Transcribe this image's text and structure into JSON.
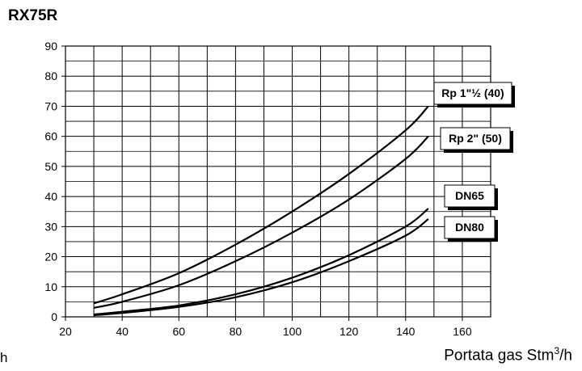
{
  "chart_data": {
    "type": "line",
    "title": "RX75R",
    "xlabel_prefix": "Portata gas Stm",
    "xlabel_sup": "3",
    "xlabel_suffix": "/h",
    "left_fragment": "h",
    "xlim": [
      20,
      170
    ],
    "ylim": [
      0,
      90
    ],
    "xticks": [
      20,
      40,
      60,
      80,
      100,
      120,
      140,
      160
    ],
    "yticks": [
      0,
      10,
      20,
      30,
      40,
      50,
      60,
      70,
      80,
      90
    ],
    "grid": true,
    "series": [
      {
        "name": "Rp 1\"½ (40)",
        "points": [
          [
            30,
            4.5
          ],
          [
            40,
            7.5
          ],
          [
            60,
            14.5
          ],
          [
            80,
            24.0
          ],
          [
            100,
            35.0
          ],
          [
            120,
            47.5
          ],
          [
            140,
            62.0
          ],
          [
            148,
            70.0
          ]
        ]
      },
      {
        "name": "Rp 2\" (50)",
        "points": [
          [
            30,
            3.0
          ],
          [
            40,
            5.0
          ],
          [
            60,
            10.5
          ],
          [
            80,
            18.5
          ],
          [
            100,
            28.0
          ],
          [
            120,
            39.0
          ],
          [
            140,
            52.5
          ],
          [
            148,
            60.0
          ]
        ]
      },
      {
        "name": "DN65",
        "points": [
          [
            30,
            0.8
          ],
          [
            40,
            1.7
          ],
          [
            60,
            3.8
          ],
          [
            80,
            7.5
          ],
          [
            100,
            13.0
          ],
          [
            120,
            20.5
          ],
          [
            140,
            30.0
          ],
          [
            148,
            36.0
          ]
        ]
      },
      {
        "name": "DN80",
        "points": [
          [
            30,
            0.5
          ],
          [
            40,
            1.3
          ],
          [
            60,
            3.3
          ],
          [
            80,
            6.5
          ],
          [
            100,
            11.5
          ],
          [
            120,
            18.5
          ],
          [
            140,
            27.0
          ],
          [
            148,
            32.5
          ]
        ]
      }
    ]
  }
}
